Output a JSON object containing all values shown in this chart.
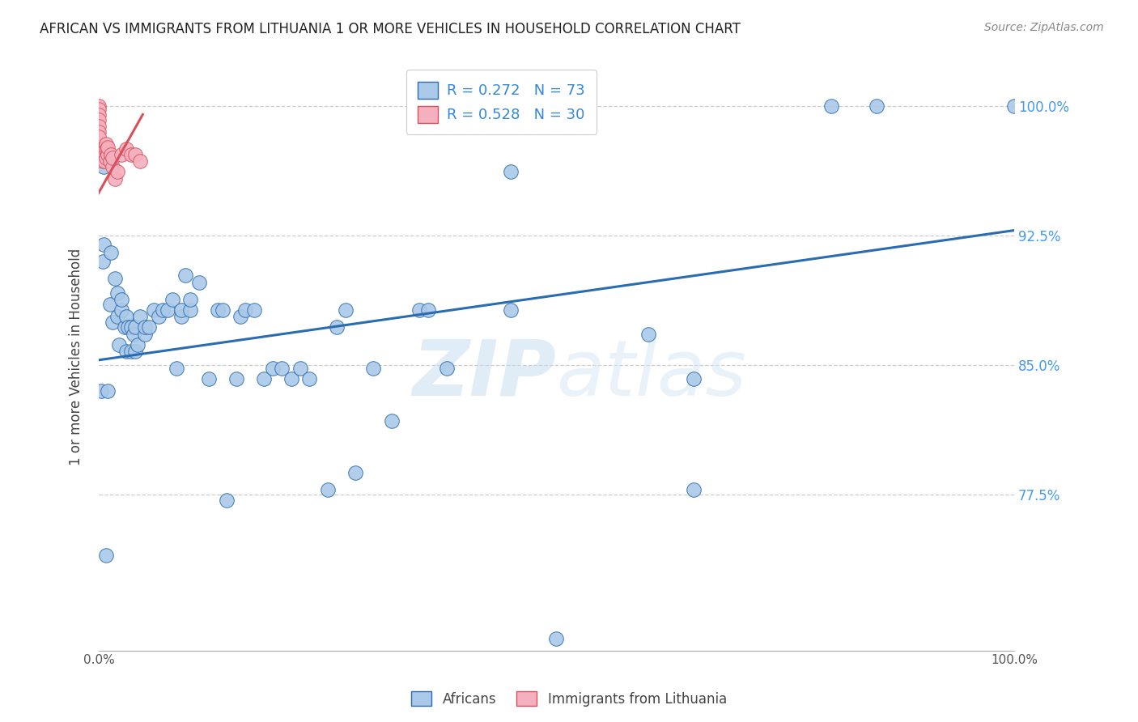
{
  "title": "AFRICAN VS IMMIGRANTS FROM LITHUANIA 1 OR MORE VEHICLES IN HOUSEHOLD CORRELATION CHART",
  "source": "Source: ZipAtlas.com",
  "ylabel": "1 or more Vehicles in Household",
  "ytick_labels": [
    "100.0%",
    "92.5%",
    "85.0%",
    "77.5%"
  ],
  "ytick_values": [
    1.0,
    0.925,
    0.85,
    0.775
  ],
  "xlim": [
    0.0,
    1.0
  ],
  "ylim": [
    0.685,
    1.025
  ],
  "legend_blue_r": "R = 0.272",
  "legend_blue_n": "N = 73",
  "legend_pink_r": "R = 0.528",
  "legend_pink_n": "N = 30",
  "legend_label_blue": "Africans",
  "legend_label_pink": "Immigrants from Lithuania",
  "blue_color": "#aac9e8",
  "pink_color": "#f5b0bf",
  "trendline_blue_color": "#2b6cb0",
  "trendline_pink_color": "#d94f5c",
  "blue_points": [
    [
      0.003,
      0.835
    ],
    [
      0.004,
      0.91
    ],
    [
      0.005,
      0.92
    ],
    [
      0.005,
      0.965
    ],
    [
      0.008,
      0.74
    ],
    [
      0.01,
      0.835
    ],
    [
      0.012,
      0.885
    ],
    [
      0.013,
      0.915
    ],
    [
      0.015,
      0.875
    ],
    [
      0.018,
      0.9
    ],
    [
      0.02,
      0.878
    ],
    [
      0.02,
      0.892
    ],
    [
      0.022,
      0.862
    ],
    [
      0.025,
      0.882
    ],
    [
      0.025,
      0.888
    ],
    [
      0.028,
      0.872
    ],
    [
      0.03,
      0.858
    ],
    [
      0.03,
      0.878
    ],
    [
      0.032,
      0.872
    ],
    [
      0.035,
      0.858
    ],
    [
      0.035,
      0.872
    ],
    [
      0.038,
      0.868
    ],
    [
      0.04,
      0.858
    ],
    [
      0.04,
      0.872
    ],
    [
      0.042,
      0.862
    ],
    [
      0.045,
      0.878
    ],
    [
      0.05,
      0.868
    ],
    [
      0.05,
      0.872
    ],
    [
      0.055,
      0.872
    ],
    [
      0.06,
      0.882
    ],
    [
      0.065,
      0.878
    ],
    [
      0.07,
      0.882
    ],
    [
      0.075,
      0.882
    ],
    [
      0.08,
      0.888
    ],
    [
      0.085,
      0.848
    ],
    [
      0.09,
      0.878
    ],
    [
      0.09,
      0.882
    ],
    [
      0.095,
      0.902
    ],
    [
      0.1,
      0.882
    ],
    [
      0.1,
      0.888
    ],
    [
      0.11,
      0.898
    ],
    [
      0.12,
      0.842
    ],
    [
      0.13,
      0.882
    ],
    [
      0.135,
      0.882
    ],
    [
      0.14,
      0.772
    ],
    [
      0.15,
      0.842
    ],
    [
      0.155,
      0.878
    ],
    [
      0.16,
      0.882
    ],
    [
      0.17,
      0.882
    ],
    [
      0.18,
      0.842
    ],
    [
      0.19,
      0.848
    ],
    [
      0.2,
      0.848
    ],
    [
      0.21,
      0.842
    ],
    [
      0.22,
      0.848
    ],
    [
      0.23,
      0.842
    ],
    [
      0.25,
      0.778
    ],
    [
      0.26,
      0.872
    ],
    [
      0.27,
      0.882
    ],
    [
      0.28,
      0.788
    ],
    [
      0.3,
      0.848
    ],
    [
      0.32,
      0.818
    ],
    [
      0.35,
      0.882
    ],
    [
      0.36,
      0.882
    ],
    [
      0.38,
      0.848
    ],
    [
      0.45,
      0.962
    ],
    [
      0.45,
      0.882
    ],
    [
      0.5,
      0.692
    ],
    [
      0.6,
      0.868
    ],
    [
      0.65,
      0.842
    ],
    [
      0.65,
      0.778
    ],
    [
      0.8,
      1.0
    ],
    [
      0.85,
      1.0
    ],
    [
      1.0,
      1.0
    ]
  ],
  "pink_points": [
    [
      0.0,
      1.0
    ],
    [
      0.0,
      0.998
    ],
    [
      0.0,
      0.995
    ],
    [
      0.0,
      0.992
    ],
    [
      0.0,
      0.988
    ],
    [
      0.0,
      0.985
    ],
    [
      0.0,
      0.982
    ],
    [
      0.002,
      0.975
    ],
    [
      0.003,
      0.972
    ],
    [
      0.004,
      0.968
    ],
    [
      0.005,
      0.975
    ],
    [
      0.005,
      0.972
    ],
    [
      0.006,
      0.968
    ],
    [
      0.007,
      0.975
    ],
    [
      0.008,
      0.97
    ],
    [
      0.008,
      0.978
    ],
    [
      0.009,
      0.975
    ],
    [
      0.01,
      0.972
    ],
    [
      0.01,
      0.976
    ],
    [
      0.012,
      0.968
    ],
    [
      0.013,
      0.972
    ],
    [
      0.015,
      0.965
    ],
    [
      0.015,
      0.97
    ],
    [
      0.018,
      0.958
    ],
    [
      0.02,
      0.962
    ],
    [
      0.025,
      0.972
    ],
    [
      0.03,
      0.975
    ],
    [
      0.035,
      0.972
    ],
    [
      0.04,
      0.972
    ],
    [
      0.045,
      0.968
    ]
  ],
  "blue_trendline_x": [
    0.0,
    1.0
  ],
  "blue_trendline_y": [
    0.853,
    0.928
  ],
  "pink_trendline_x": [
    -0.002,
    0.048
  ],
  "pink_trendline_y": [
    0.948,
    0.995
  ]
}
